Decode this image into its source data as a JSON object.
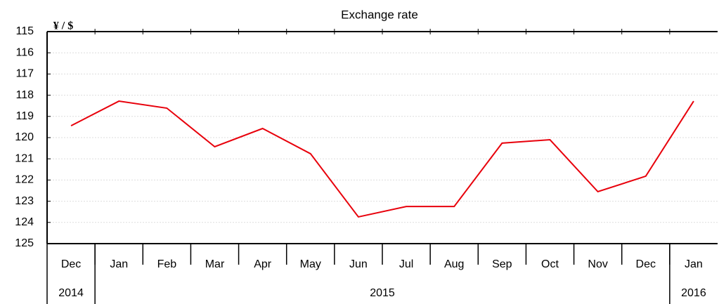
{
  "chart_data": {
    "type": "line",
    "title": "Exchange rate",
    "y_label": "¥ / $",
    "categories": [
      "Dec",
      "Jan",
      "Feb",
      "Mar",
      "Apr",
      "May",
      "Jun",
      "Jul",
      "Aug",
      "Sep",
      "Oct",
      "Nov",
      "Dec",
      "Jan"
    ],
    "year_groups": [
      {
        "label": "2014",
        "size": 1
      },
      {
        "label": "2015",
        "size": 12
      },
      {
        "label": "2016",
        "size": 1
      }
    ],
    "series": [
      {
        "name": "Exchange rate",
        "color": "#e8000b",
        "values": [
          119.44,
          118.28,
          118.61,
          120.43,
          119.57,
          120.76,
          123.74,
          123.25,
          123.25,
          120.26,
          120.1,
          122.55,
          121.82,
          118.28
        ]
      }
    ],
    "ylim": [
      115,
      125
    ],
    "y_inverted": true,
    "yticks": [
      115,
      116,
      117,
      118,
      119,
      120,
      121,
      122,
      123,
      124,
      125
    ],
    "grid": true
  }
}
